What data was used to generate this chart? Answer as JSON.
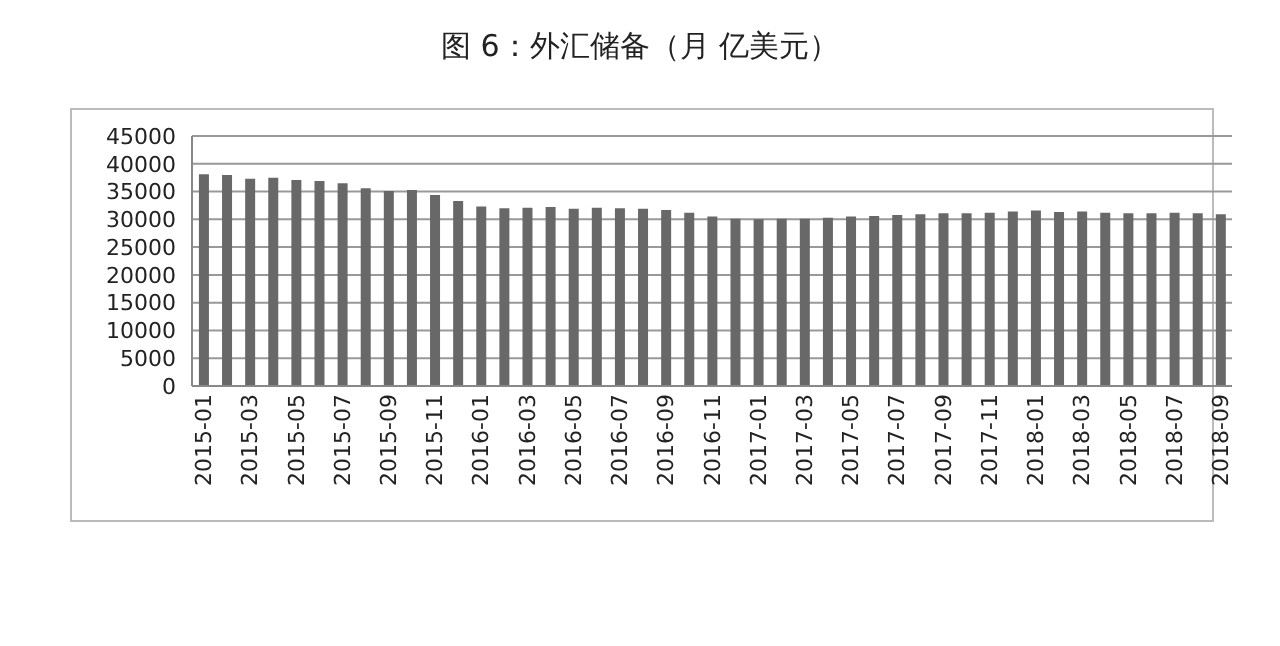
{
  "chart_data": {
    "type": "bar",
    "title": "图 6：外汇储备（月 亿美元）",
    "categories": [
      "2015-01",
      null,
      "2015-03",
      null,
      "2015-05",
      null,
      "2015-07",
      null,
      "2015-09",
      null,
      "2015-11",
      null,
      "2016-01",
      null,
      "2016-03",
      null,
      "2016-05",
      null,
      "2016-07",
      null,
      "2016-09",
      null,
      "2016-11",
      null,
      "2017-01",
      null,
      "2017-03",
      null,
      "2017-05",
      null,
      "2017-07",
      null,
      "2017-09",
      null,
      "2017-11",
      null,
      "2018-01",
      null,
      "2018-03",
      null,
      "2018-05",
      null,
      "2018-07",
      null,
      "2018-09"
    ],
    "values": [
      38100,
      38000,
      37300,
      37500,
      37100,
      36900,
      36500,
      35600,
      35100,
      35300,
      34400,
      33300,
      32300,
      32000,
      32100,
      32200,
      31900,
      32100,
      32000,
      31900,
      31700,
      31200,
      30500,
      30100,
      30000,
      30100,
      30100,
      30300,
      30500,
      30600,
      30800,
      30900,
      31100,
      31100,
      31200,
      31400,
      31600,
      31300,
      31400,
      31200,
      31100,
      31100,
      31200,
      31100,
      30900
    ],
    "color": "#686868",
    "ylim": [
      0,
      45000
    ],
    "yticks": [
      0,
      5000,
      10000,
      15000,
      20000,
      25000,
      30000,
      35000,
      40000,
      45000
    ],
    "grid": "y",
    "legend": false
  }
}
